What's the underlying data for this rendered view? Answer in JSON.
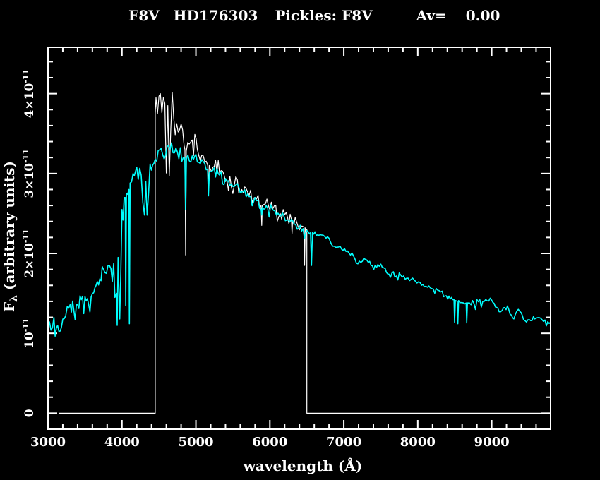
{
  "header": {
    "star_type": "F8V",
    "star_name": "HD176303",
    "template_label": "Pickles: F8V",
    "av_label": "Av=",
    "av_value": "0.00"
  },
  "colors": {
    "background": "#000000",
    "foreground": "#ffffff",
    "observed_spectrum": "#ffffff",
    "template_spectrum": "#00ffff"
  },
  "chart_data": {
    "type": "line",
    "title": "F8V  HD176303  Pickles: F8V   Av= 0.00",
    "xlabel": "wavelength (Å)",
    "ylabel": "Fλ (arbitrary units)",
    "ylabel_parts": {
      "pre": "F",
      "sub": "λ",
      "post": " (arbitrary units)"
    },
    "x_range": [
      3000,
      9796
    ],
    "y_range_flux_1e11": [
      -0.2,
      4.58
    ],
    "x_major_ticks": [
      3000,
      4000,
      5000,
      6000,
      7000,
      8000,
      9000
    ],
    "x_minor_step": 200,
    "y_major_ticks": [
      0,
      1,
      2,
      3,
      4
    ],
    "y_minor_step": 0.2,
    "y_tick_labels": [
      {
        "value": 0,
        "base": "0",
        "exp": ""
      },
      {
        "value": 1,
        "base": "10",
        "exp": "-11"
      },
      {
        "value": 2,
        "base": "2×10",
        "exp": "-11"
      },
      {
        "value": 3,
        "base": "3×10",
        "exp": "-11"
      },
      {
        "value": 4,
        "base": "4×10",
        "exp": "-11"
      }
    ],
    "grid": false,
    "legend": "none",
    "flux_unit_scale": "1e-11",
    "noise_step_angstrom": 20,
    "noise_seed": 7,
    "series": [
      {
        "name": "observed-spectrum",
        "role": "observed spectrum (HD176303), zero outside 4450-6500 Å",
        "color": "#ffffff",
        "width": 1.2,
        "anchors": [
          [
            3153,
            0,
            0
          ],
          [
            4450,
            0,
            0
          ],
          [
            4450,
            3.75,
            0
          ],
          [
            4460,
            3.95,
            0.35
          ],
          [
            4520,
            4.0,
            0.35
          ],
          [
            4560,
            3.95,
            0.32
          ],
          [
            4620,
            3.85,
            0.3
          ],
          [
            4700,
            3.7,
            0.28
          ],
          [
            4780,
            3.55,
            0.25
          ],
          [
            4840,
            3.35,
            0.2
          ],
          [
            4852,
            3.3,
            0.1
          ],
          [
            4861,
            1.98,
            0.02
          ],
          [
            4870,
            3.28,
            0.1
          ],
          [
            4950,
            3.42,
            0.2
          ],
          [
            5020,
            3.3,
            0.2
          ],
          [
            5100,
            3.22,
            0.2
          ],
          [
            5160,
            3.1,
            0.1
          ],
          [
            5170,
            2.8,
            0.05
          ],
          [
            5180,
            3.1,
            0.1
          ],
          [
            5230,
            3.08,
            0.18
          ],
          [
            5320,
            3.0,
            0.17
          ],
          [
            5420,
            2.92,
            0.15
          ],
          [
            5520,
            2.86,
            0.14
          ],
          [
            5620,
            2.8,
            0.12
          ],
          [
            5720,
            2.73,
            0.11
          ],
          [
            5820,
            2.68,
            0.1
          ],
          [
            5882,
            2.6,
            0.05
          ],
          [
            5890,
            2.35,
            0.03
          ],
          [
            5898,
            2.6,
            0.05
          ],
          [
            5940,
            2.62,
            0.09
          ],
          [
            6040,
            2.56,
            0.08
          ],
          [
            6140,
            2.5,
            0.08
          ],
          [
            6240,
            2.45,
            0.09
          ],
          [
            6292,
            2.42,
            0.05
          ],
          [
            6300,
            2.25,
            0.04
          ],
          [
            6308,
            2.42,
            0.05
          ],
          [
            6360,
            2.4,
            0.09
          ],
          [
            6440,
            2.34,
            0.1
          ],
          [
            6462,
            2.33,
            0.05
          ],
          [
            6470,
            1.85,
            0.03
          ],
          [
            6478,
            2.32,
            0.05
          ],
          [
            6495,
            2.3,
            0.04
          ],
          [
            6500,
            2.3,
            0
          ],
          [
            6500,
            0,
            0
          ],
          [
            9796,
            0,
            0
          ]
        ]
      },
      {
        "name": "pickles-template-f8v",
        "role": "Pickles F8V template spectrum",
        "color": "#00ffff",
        "width": 1.6,
        "anchors": [
          [
            3000,
            1.15,
            0.07
          ],
          [
            3040,
            1.04,
            0.06
          ],
          [
            3080,
            1.2,
            0.07
          ],
          [
            3130,
            1.1,
            0.07
          ],
          [
            3180,
            1.07,
            0.06
          ],
          [
            3240,
            1.22,
            0.08
          ],
          [
            3300,
            1.36,
            0.09
          ],
          [
            3350,
            1.28,
            0.1
          ],
          [
            3400,
            1.36,
            0.08
          ],
          [
            3450,
            1.42,
            0.08
          ],
          [
            3500,
            1.46,
            0.09
          ],
          [
            3550,
            1.36,
            0.09
          ],
          [
            3600,
            1.5,
            0.08
          ],
          [
            3650,
            1.6,
            0.09
          ],
          [
            3700,
            1.68,
            0.1
          ],
          [
            3750,
            1.8,
            0.12
          ],
          [
            3790,
            1.75,
            0.3
          ],
          [
            3830,
            1.85,
            0.45
          ],
          [
            3870,
            1.65,
            0.5
          ],
          [
            3905,
            1.45,
            0.4
          ],
          [
            3928,
            1.5,
            0.1
          ],
          [
            3935,
            1.1,
            0.05
          ],
          [
            3948,
            1.95,
            0.3
          ],
          [
            3970,
            1.18,
            0.05
          ],
          [
            4000,
            2.55,
            0.3
          ],
          [
            4030,
            2.7,
            0.3
          ],
          [
            4044,
            2.7,
            0.1
          ],
          [
            4051,
            1.35,
            0.03
          ],
          [
            4060,
            2.75,
            0.15
          ],
          [
            4094,
            2.8,
            0.1
          ],
          [
            4101,
            1.12,
            0.02
          ],
          [
            4110,
            2.88,
            0.12
          ],
          [
            4150,
            3.0,
            0.12
          ],
          [
            4200,
            3.08,
            0.12
          ],
          [
            4260,
            2.98,
            0.13
          ],
          [
            4305,
            2.48,
            0.08
          ],
          [
            4322,
            2.9,
            0.1
          ],
          [
            4340,
            2.48,
            0.06
          ],
          [
            4380,
            3.12,
            0.1
          ],
          [
            4450,
            3.18,
            0.12
          ],
          [
            4550,
            3.24,
            0.12
          ],
          [
            4650,
            3.3,
            0.1
          ],
          [
            4750,
            3.27,
            0.1
          ],
          [
            4830,
            3.2,
            0.08
          ],
          [
            4850,
            3.19,
            0.04
          ],
          [
            4861,
            2.55,
            0.02
          ],
          [
            4872,
            3.18,
            0.05
          ],
          [
            4950,
            3.22,
            0.1
          ],
          [
            5000,
            3.24,
            0.1
          ],
          [
            5100,
            3.15,
            0.09
          ],
          [
            5158,
            3.05,
            0.05
          ],
          [
            5170,
            2.72,
            0.04
          ],
          [
            5182,
            3.02,
            0.05
          ],
          [
            5230,
            3.04,
            0.08
          ],
          [
            5320,
            2.98,
            0.08
          ],
          [
            5420,
            2.9,
            0.08
          ],
          [
            5520,
            2.84,
            0.07
          ],
          [
            5620,
            2.77,
            0.07
          ],
          [
            5720,
            2.71,
            0.06
          ],
          [
            5820,
            2.66,
            0.06
          ],
          [
            5882,
            2.55,
            0.03
          ],
          [
            5890,
            2.48,
            0.02
          ],
          [
            5898,
            2.58,
            0.03
          ],
          [
            5950,
            2.6,
            0.05
          ],
          [
            6050,
            2.54,
            0.05
          ],
          [
            6150,
            2.47,
            0.05
          ],
          [
            6250,
            2.42,
            0.05
          ],
          [
            6350,
            2.36,
            0.05
          ],
          [
            6450,
            2.31,
            0.04
          ],
          [
            6520,
            2.27,
            0.03
          ],
          [
            6550,
            2.26,
            0.02
          ],
          [
            6563,
            1.85,
            0.01
          ],
          [
            6576,
            2.26,
            0.02
          ],
          [
            6610,
            2.27,
            0.04
          ],
          [
            6700,
            2.23,
            0.04
          ],
          [
            6800,
            2.19,
            0.03
          ],
          [
            6870,
            2.09,
            0.03
          ],
          [
            6950,
            2.09,
            0.03
          ],
          [
            7050,
            2.03,
            0.03
          ],
          [
            7130,
            1.97,
            0.03
          ],
          [
            7190,
            1.87,
            0.04
          ],
          [
            7270,
            1.94,
            0.03
          ],
          [
            7350,
            1.9,
            0.03
          ],
          [
            7405,
            1.8,
            0.04
          ],
          [
            7460,
            1.86,
            0.03
          ],
          [
            7560,
            1.81,
            0.03
          ],
          [
            7610,
            1.74,
            0.02
          ],
          [
            7670,
            1.77,
            0.03
          ],
          [
            7770,
            1.73,
            0.03
          ],
          [
            7870,
            1.69,
            0.03
          ],
          [
            7970,
            1.65,
            0.03
          ],
          [
            8070,
            1.61,
            0.03
          ],
          [
            8170,
            1.57,
            0.03
          ],
          [
            8270,
            1.54,
            0.03
          ],
          [
            8370,
            1.47,
            0.03
          ],
          [
            8440,
            1.43,
            0.03
          ],
          [
            8490,
            1.42,
            0.02
          ],
          [
            8498,
            1.14,
            0.01
          ],
          [
            8508,
            1.41,
            0.02
          ],
          [
            8534,
            1.4,
            0.02
          ],
          [
            8542,
            1.12,
            0.01
          ],
          [
            8552,
            1.41,
            0.02
          ],
          [
            8620,
            1.38,
            0.03
          ],
          [
            8654,
            1.38,
            0.02
          ],
          [
            8662,
            1.13,
            0.01
          ],
          [
            8672,
            1.38,
            0.02
          ],
          [
            8700,
            1.38,
            0.03
          ],
          [
            8800,
            1.42,
            0.04
          ],
          [
            8900,
            1.4,
            0.04
          ],
          [
            8980,
            1.44,
            0.04
          ],
          [
            9050,
            1.33,
            0.04
          ],
          [
            9100,
            1.27,
            0.03
          ],
          [
            9160,
            1.32,
            0.04
          ],
          [
            9230,
            1.3,
            0.04
          ],
          [
            9300,
            1.18,
            0.04
          ],
          [
            9360,
            1.3,
            0.04
          ],
          [
            9430,
            1.17,
            0.03
          ],
          [
            9510,
            1.17,
            0.03
          ],
          [
            9600,
            1.19,
            0.03
          ],
          [
            9700,
            1.15,
            0.02
          ],
          [
            9796,
            1.14,
            0.02
          ]
        ]
      }
    ]
  }
}
